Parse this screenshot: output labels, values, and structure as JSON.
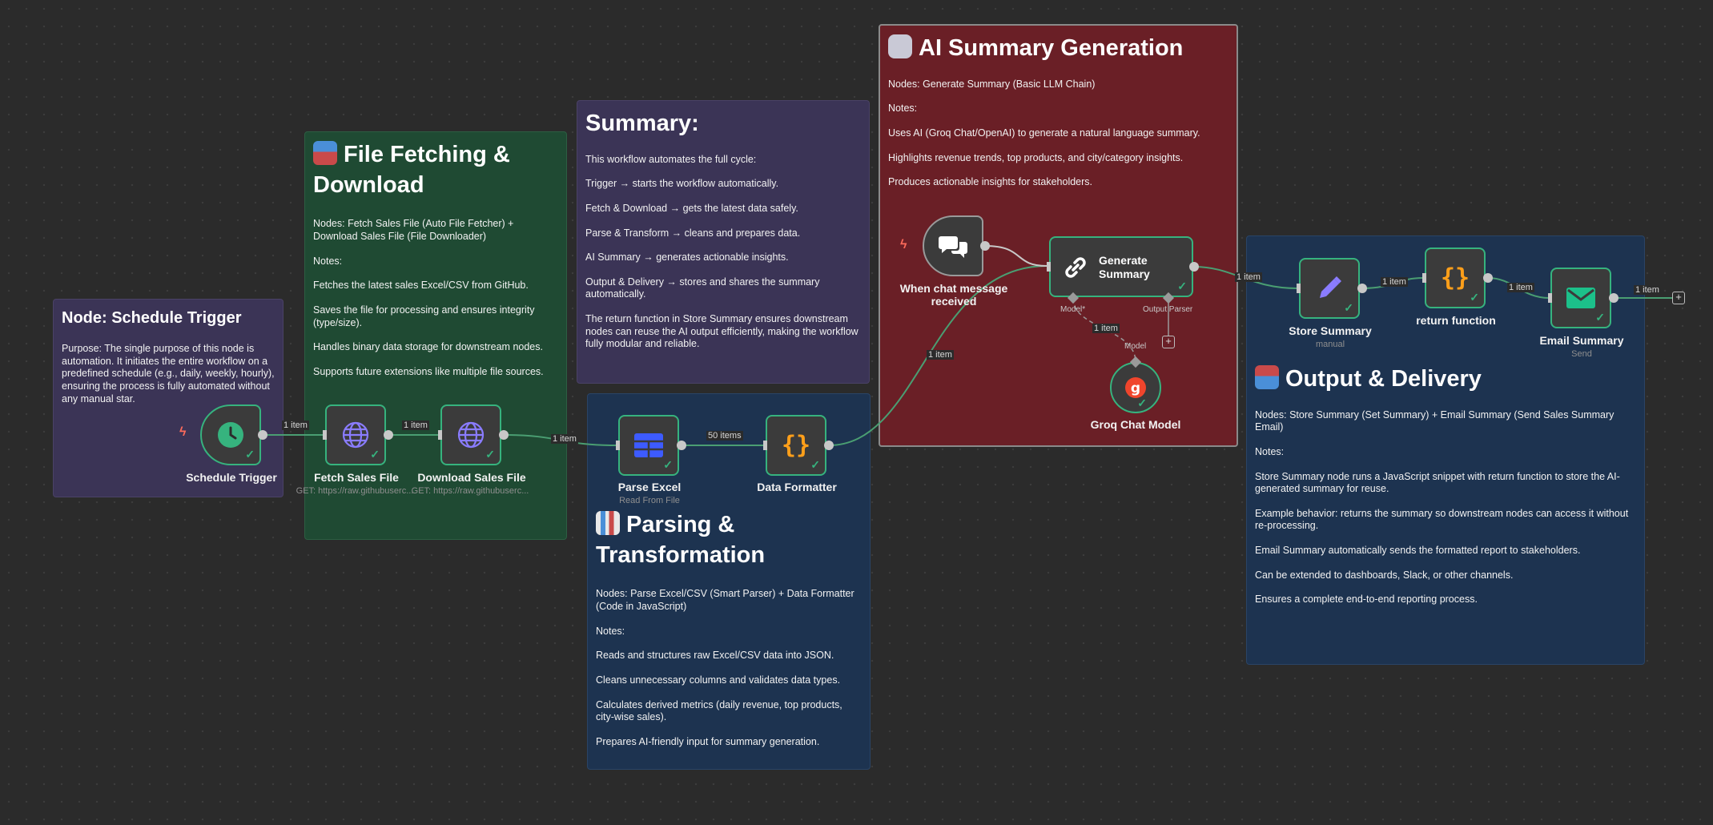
{
  "notes": {
    "schedule": {
      "title": "Node: Schedule Trigger",
      "paragraphs": [
        "Purpose: The single purpose of this node is automation. It initiates the entire workflow on a predefined schedule (e.g., daily, weekly, hourly), ensuring the process is fully automated without any manual star."
      ],
      "color": "#3b3456"
    },
    "fetch": {
      "title": "File Fetching & Download",
      "paragraphs": [
        "Nodes: Fetch Sales File (Auto File Fetcher) + Download Sales File (File Downloader)",
        "Notes:",
        "Fetches the latest sales Excel/CSV from GitHub.",
        "Saves the file for processing and ensures integrity (type/size).",
        "Handles binary data storage for downstream nodes.",
        "Supports future extensions like multiple file sources."
      ],
      "color": "#1f4a33"
    },
    "summary": {
      "title": "Summary:",
      "paragraphs": [
        "This workflow automates the full cycle:",
        "Trigger → starts the workflow automatically.",
        "Fetch & Download → gets the latest data safely.",
        "Parse & Transform → cleans and prepares data.",
        "AI Summary → generates actionable insights.",
        "Output & Delivery → stores and shares the summary automatically.",
        "The return function in Store Summary ensures downstream nodes can reuse the AI output efficiently, making the workflow fully modular and reliable."
      ],
      "color": "#3b3456"
    },
    "parsing": {
      "title": "Parsing & Transformation",
      "paragraphs": [
        "Nodes: Parse Excel/CSV (Smart Parser) + Data Formatter (Code in JavaScript)",
        "Notes:",
        "Reads and structures raw Excel/CSV data into JSON.",
        "Cleans unnecessary columns and validates data types.",
        "Calculates derived metrics (daily revenue, top products, city-wise sales).",
        "Prepares AI-friendly input for summary generation."
      ],
      "color": "#1d3350"
    },
    "ai": {
      "title": "AI Summary Generation",
      "paragraphs": [
        "Nodes: Generate Summary (Basic LLM Chain)",
        "Notes:",
        "Uses AI (Groq Chat/OpenAI) to generate a natural language summary.",
        "Highlights revenue trends, top products, and city/category insights.",
        "Produces actionable insights for stakeholders."
      ],
      "color": "#6a1f26"
    },
    "output": {
      "title": "Output & Delivery",
      "paragraphs": [
        "Nodes: Store Summary (Set Summary) + Email Summary (Send Sales Summary Email)",
        "Notes:",
        "Store Summary node runs a JavaScript snippet with return function to store the AI-generated summary for reuse.",
        "Example behavior: returns the summary so downstream nodes can access it without re-processing.",
        "Email Summary automatically sends the formatted report to stakeholders.",
        "Can be extended to dashboards, Slack, or other channels.",
        "Ensures a complete end-to-end reporting process."
      ],
      "color": "#1d3350"
    }
  },
  "nodes": {
    "schedule_trigger": {
      "label": "Schedule Trigger",
      "icon": "clock-icon"
    },
    "fetch_sales_file": {
      "label": "Fetch Sales File",
      "sub": "GET: https://raw.githubuserc...",
      "icon": "globe-icon"
    },
    "download_sales_file": {
      "label": "Download Sales File",
      "sub": "GET: https://raw.githubuserc...",
      "icon": "globe-icon"
    },
    "parse_excel": {
      "label": "Parse Excel",
      "sub": "Read From File",
      "icon": "table-icon"
    },
    "data_formatter": {
      "label": "Data Formatter",
      "icon": "braces-icon"
    },
    "chat_trigger": {
      "label": "When chat message received",
      "icon": "chat-icon"
    },
    "generate_summary": {
      "label": "Generate Summary",
      "icon": "link-icon"
    },
    "groq_chat_model": {
      "label": "Groq Chat Model",
      "icon": "groq-icon"
    },
    "store_summary": {
      "label": "Store Summary",
      "sub": "manual",
      "icon": "pencil-icon"
    },
    "return_function": {
      "label": "return function",
      "icon": "braces-icon"
    },
    "email_summary": {
      "label": "Email Summary",
      "sub": "Send",
      "icon": "envelope-icon"
    }
  },
  "edges": {
    "e1": "1 item",
    "e2": "1 item",
    "e3": "1 item",
    "e4": "50 items",
    "e5": "1 item",
    "e6": "1 item",
    "e7": "1 item",
    "e8": "1 item",
    "e9": "1 item",
    "e10": "1 item",
    "e11": "1 item"
  },
  "ports": {
    "model_required": "Model*",
    "output_parser": "Output Parser",
    "model": "Model"
  },
  "colors": {
    "accent_green": "#36b37e",
    "trigger_bolt": "#ff6b5b",
    "canvas": "#2b2b2b"
  }
}
